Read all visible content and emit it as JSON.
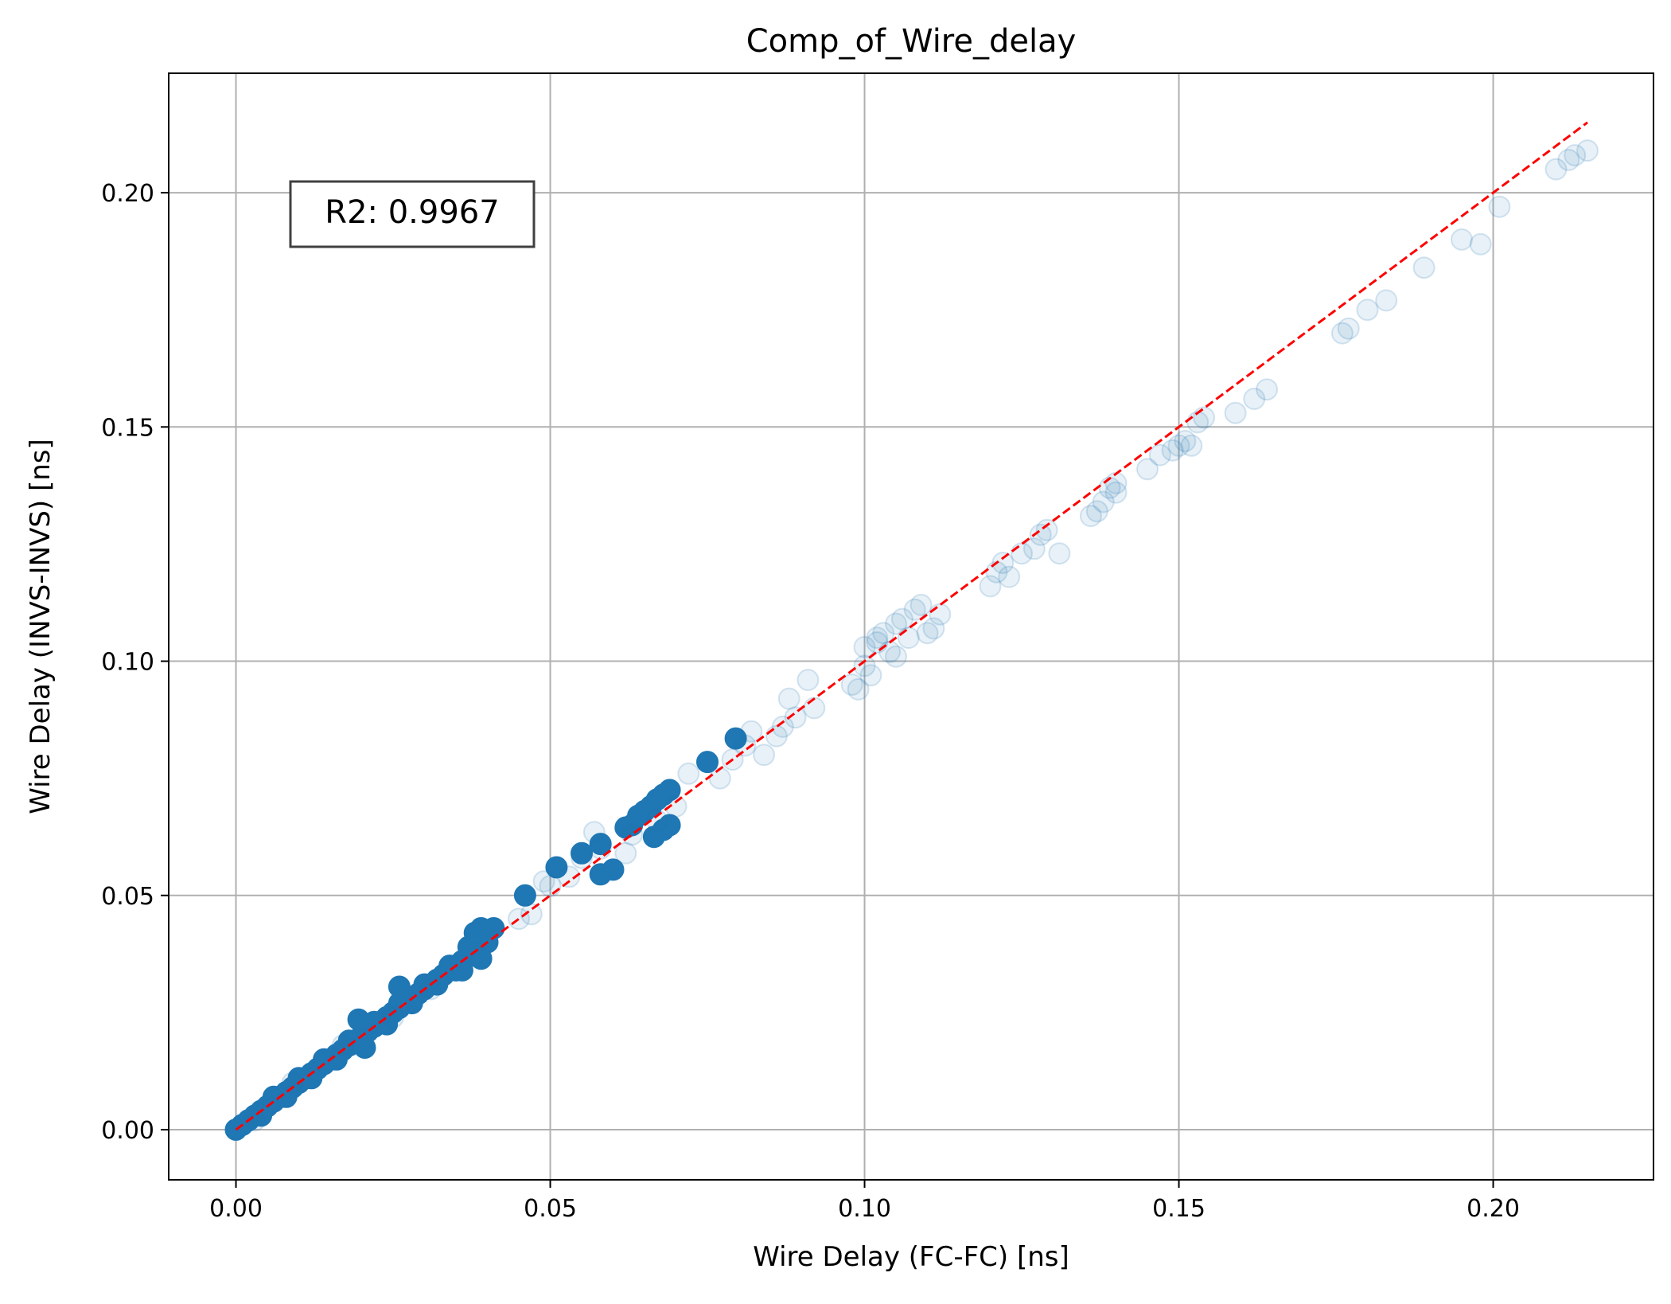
{
  "chart_data": {
    "type": "scatter",
    "title": "Comp_of_Wire_delay",
    "xlabel": "Wire Delay (FC-FC) [ns]",
    "ylabel": "Wire Delay (INVS-INVS) [ns]",
    "xlim": [
      -0.0107,
      0.2255
    ],
    "ylim": [
      -0.0107,
      0.2255
    ],
    "xticks": [
      "0.00",
      "0.05",
      "0.10",
      "0.15",
      "0.20"
    ],
    "yticks": [
      "0.00",
      "0.05",
      "0.10",
      "0.15",
      "0.20"
    ],
    "xtick_values": [
      0.0,
      0.05,
      0.1,
      0.15,
      0.2
    ],
    "ytick_values": [
      0.0,
      0.05,
      0.1,
      0.15,
      0.2
    ],
    "grid": true,
    "annotation": "R2: 0.9967",
    "colors": {
      "points": "#1f77b4",
      "reference_line": "#ff0000",
      "grid": "#b0b0b0"
    },
    "reference_line": {
      "style": "dashed",
      "x": [
        0.0,
        0.215
      ],
      "y": [
        0.0,
        0.215
      ]
    },
    "series": [
      {
        "opacity": "solid",
        "points": [
          [
            0.0,
            0.0
          ],
          [
            0.001,
            0.001
          ],
          [
            0.002,
            0.002
          ],
          [
            0.003,
            0.003
          ],
          [
            0.004,
            0.004
          ],
          [
            0.005,
            0.005
          ],
          [
            0.006,
            0.006
          ],
          [
            0.007,
            0.007
          ],
          [
            0.008,
            0.008
          ],
          [
            0.009,
            0.009
          ],
          [
            0.01,
            0.01
          ],
          [
            0.011,
            0.011
          ],
          [
            0.012,
            0.012
          ],
          [
            0.013,
            0.013
          ],
          [
            0.014,
            0.014
          ],
          [
            0.015,
            0.015
          ],
          [
            0.016,
            0.016
          ],
          [
            0.017,
            0.017
          ],
          [
            0.018,
            0.018
          ],
          [
            0.019,
            0.019
          ],
          [
            0.02,
            0.02
          ],
          [
            0.021,
            0.021
          ],
          [
            0.022,
            0.022
          ],
          [
            0.023,
            0.023
          ],
          [
            0.024,
            0.024
          ],
          [
            0.025,
            0.025
          ],
          [
            0.026,
            0.026
          ],
          [
            0.027,
            0.027
          ],
          [
            0.028,
            0.028
          ],
          [
            0.029,
            0.029
          ],
          [
            0.03,
            0.03
          ],
          [
            0.031,
            0.031
          ],
          [
            0.032,
            0.032
          ],
          [
            0.033,
            0.033
          ],
          [
            0.034,
            0.034
          ],
          [
            0.035,
            0.035
          ],
          [
            0.036,
            0.036
          ],
          [
            0.037,
            0.037
          ],
          [
            0.038,
            0.038
          ],
          [
            0.039,
            0.039
          ],
          [
            0.04,
            0.04
          ],
          [
            0.004,
            0.003
          ],
          [
            0.008,
            0.007
          ],
          [
            0.012,
            0.011
          ],
          [
            0.016,
            0.015
          ],
          [
            0.02,
            0.019
          ],
          [
            0.024,
            0.023
          ],
          [
            0.028,
            0.027
          ],
          [
            0.032,
            0.031
          ],
          [
            0.036,
            0.034
          ],
          [
            0.006,
            0.007
          ],
          [
            0.01,
            0.011
          ],
          [
            0.014,
            0.015
          ],
          [
            0.018,
            0.019
          ],
          [
            0.022,
            0.023
          ],
          [
            0.026,
            0.027
          ],
          [
            0.03,
            0.031
          ],
          [
            0.034,
            0.035
          ],
          [
            0.037,
            0.039
          ],
          [
            0.039,
            0.043
          ],
          [
            0.041,
            0.043
          ],
          [
            0.038,
            0.042
          ],
          [
            0.0195,
            0.0235
          ],
          [
            0.026,
            0.0305
          ],
          [
            0.024,
            0.0225
          ],
          [
            0.0205,
            0.0175
          ],
          [
            0.039,
            0.0365
          ],
          [
            0.035,
            0.034
          ],
          [
            0.046,
            0.05
          ],
          [
            0.051,
            0.056
          ],
          [
            0.055,
            0.059
          ],
          [
            0.058,
            0.061
          ],
          [
            0.058,
            0.0545
          ],
          [
            0.06,
            0.0555
          ],
          [
            0.062,
            0.0645
          ],
          [
            0.063,
            0.065
          ],
          [
            0.064,
            0.067
          ],
          [
            0.065,
            0.068
          ],
          [
            0.066,
            0.069
          ],
          [
            0.067,
            0.0705
          ],
          [
            0.068,
            0.0715
          ],
          [
            0.069,
            0.0725
          ],
          [
            0.0665,
            0.0625
          ],
          [
            0.068,
            0.064
          ],
          [
            0.069,
            0.065
          ],
          [
            0.075,
            0.0785
          ],
          [
            0.0795,
            0.0835
          ]
        ]
      },
      {
        "opacity": "faint",
        "points": [
          [
            0.045,
            0.045
          ],
          [
            0.047,
            0.046
          ],
          [
            0.049,
            0.053
          ],
          [
            0.05,
            0.052
          ],
          [
            0.053,
            0.054
          ],
          [
            0.055,
            0.058
          ],
          [
            0.057,
            0.0635
          ],
          [
            0.058,
            0.06
          ],
          [
            0.062,
            0.059
          ],
          [
            0.063,
            0.063
          ],
          [
            0.067,
            0.066
          ],
          [
            0.07,
            0.069
          ],
          [
            0.072,
            0.076
          ],
          [
            0.077,
            0.075
          ],
          [
            0.079,
            0.079
          ],
          [
            0.081,
            0.082
          ],
          [
            0.082,
            0.085
          ],
          [
            0.084,
            0.08
          ],
          [
            0.086,
            0.084
          ],
          [
            0.087,
            0.086
          ],
          [
            0.088,
            0.092
          ],
          [
            0.089,
            0.088
          ],
          [
            0.091,
            0.096
          ],
          [
            0.092,
            0.09
          ],
          [
            0.098,
            0.095
          ],
          [
            0.099,
            0.094
          ],
          [
            0.1,
            0.099
          ],
          [
            0.1,
            0.103
          ],
          [
            0.101,
            0.097
          ],
          [
            0.102,
            0.104
          ],
          [
            0.102,
            0.105
          ],
          [
            0.103,
            0.106
          ],
          [
            0.104,
            0.102
          ],
          [
            0.105,
            0.108
          ],
          [
            0.105,
            0.101
          ],
          [
            0.106,
            0.109
          ],
          [
            0.107,
            0.105
          ],
          [
            0.108,
            0.111
          ],
          [
            0.109,
            0.112
          ],
          [
            0.11,
            0.106
          ],
          [
            0.111,
            0.107
          ],
          [
            0.112,
            0.11
          ],
          [
            0.12,
            0.116
          ],
          [
            0.121,
            0.119
          ],
          [
            0.122,
            0.121
          ],
          [
            0.123,
            0.118
          ],
          [
            0.125,
            0.123
          ],
          [
            0.127,
            0.124
          ],
          [
            0.128,
            0.127
          ],
          [
            0.129,
            0.128
          ],
          [
            0.131,
            0.123
          ],
          [
            0.136,
            0.131
          ],
          [
            0.137,
            0.132
          ],
          [
            0.138,
            0.134
          ],
          [
            0.139,
            0.137
          ],
          [
            0.14,
            0.138
          ],
          [
            0.14,
            0.136
          ],
          [
            0.145,
            0.141
          ],
          [
            0.147,
            0.144
          ],
          [
            0.149,
            0.145
          ],
          [
            0.15,
            0.146
          ],
          [
            0.151,
            0.147
          ],
          [
            0.152,
            0.146
          ],
          [
            0.153,
            0.151
          ],
          [
            0.154,
            0.152
          ],
          [
            0.159,
            0.153
          ],
          [
            0.162,
            0.156
          ],
          [
            0.164,
            0.158
          ],
          [
            0.176,
            0.17
          ],
          [
            0.177,
            0.171
          ],
          [
            0.18,
            0.175
          ],
          [
            0.183,
            0.177
          ],
          [
            0.189,
            0.184
          ],
          [
            0.195,
            0.19
          ],
          [
            0.198,
            0.189
          ],
          [
            0.201,
            0.197
          ],
          [
            0.21,
            0.205
          ],
          [
            0.212,
            0.207
          ],
          [
            0.213,
            0.208
          ],
          [
            0.215,
            0.209
          ],
          [
            0.003,
            0.002
          ],
          [
            0.009,
            0.01
          ],
          [
            0.017,
            0.018
          ],
          [
            0.025,
            0.024
          ],
          [
            0.031,
            0.03
          ]
        ]
      }
    ]
  }
}
